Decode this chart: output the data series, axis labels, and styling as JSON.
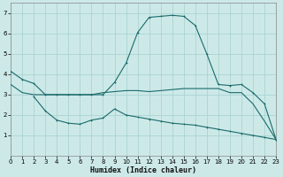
{
  "xlabel": "Humidex (Indice chaleur)",
  "xlim": [
    0,
    23
  ],
  "ylim": [
    0,
    7.5
  ],
  "yticks": [
    1,
    2,
    3,
    4,
    5,
    6,
    7
  ],
  "xticks": [
    0,
    1,
    2,
    3,
    4,
    5,
    6,
    7,
    8,
    9,
    10,
    11,
    12,
    13,
    14,
    15,
    16,
    17,
    18,
    19,
    20,
    21,
    22,
    23
  ],
  "background_color": "#cce9e8",
  "grid_color": "#aad4d2",
  "line_color": "#1a6b6b",
  "line_peak_x": [
    0,
    1,
    2,
    3,
    4,
    5,
    6,
    7,
    8,
    9,
    10,
    11,
    12,
    13,
    14,
    15,
    16,
    17,
    18,
    19,
    20,
    21,
    22,
    23
  ],
  "line_peak_y": [
    3.5,
    3.1,
    3.0,
    3.0,
    3.0,
    3.0,
    3.0,
    3.0,
    3.1,
    3.15,
    3.2,
    3.2,
    3.15,
    3.2,
    3.25,
    3.3,
    3.3,
    3.3,
    3.3,
    3.1,
    3.1,
    2.55,
    1.7,
    0.8
  ],
  "line_upper_x": [
    0,
    1,
    2,
    3,
    4,
    5,
    6,
    7,
    8,
    9,
    10,
    11,
    12,
    13,
    14,
    15,
    16,
    17,
    18,
    19,
    20,
    21,
    22,
    23
  ],
  "line_upper_y": [
    4.15,
    3.75,
    3.55,
    3.0,
    3.0,
    3.0,
    3.0,
    3.0,
    3.0,
    3.6,
    4.55,
    6.05,
    6.8,
    6.85,
    6.9,
    6.85,
    6.4,
    5.0,
    3.5,
    3.45,
    3.5,
    3.1,
    2.55,
    0.8
  ],
  "line_lower_x": [
    2,
    3,
    4,
    5,
    6,
    7,
    8,
    9,
    10,
    11,
    12,
    13,
    14,
    15,
    16,
    17,
    18,
    19,
    20,
    21,
    22,
    23
  ],
  "line_lower_y": [
    2.9,
    2.2,
    1.75,
    1.6,
    1.55,
    1.75,
    1.85,
    2.3,
    2.0,
    1.9,
    1.8,
    1.7,
    1.6,
    1.55,
    1.5,
    1.4,
    1.3,
    1.2,
    1.1,
    1.0,
    0.9,
    0.8
  ]
}
